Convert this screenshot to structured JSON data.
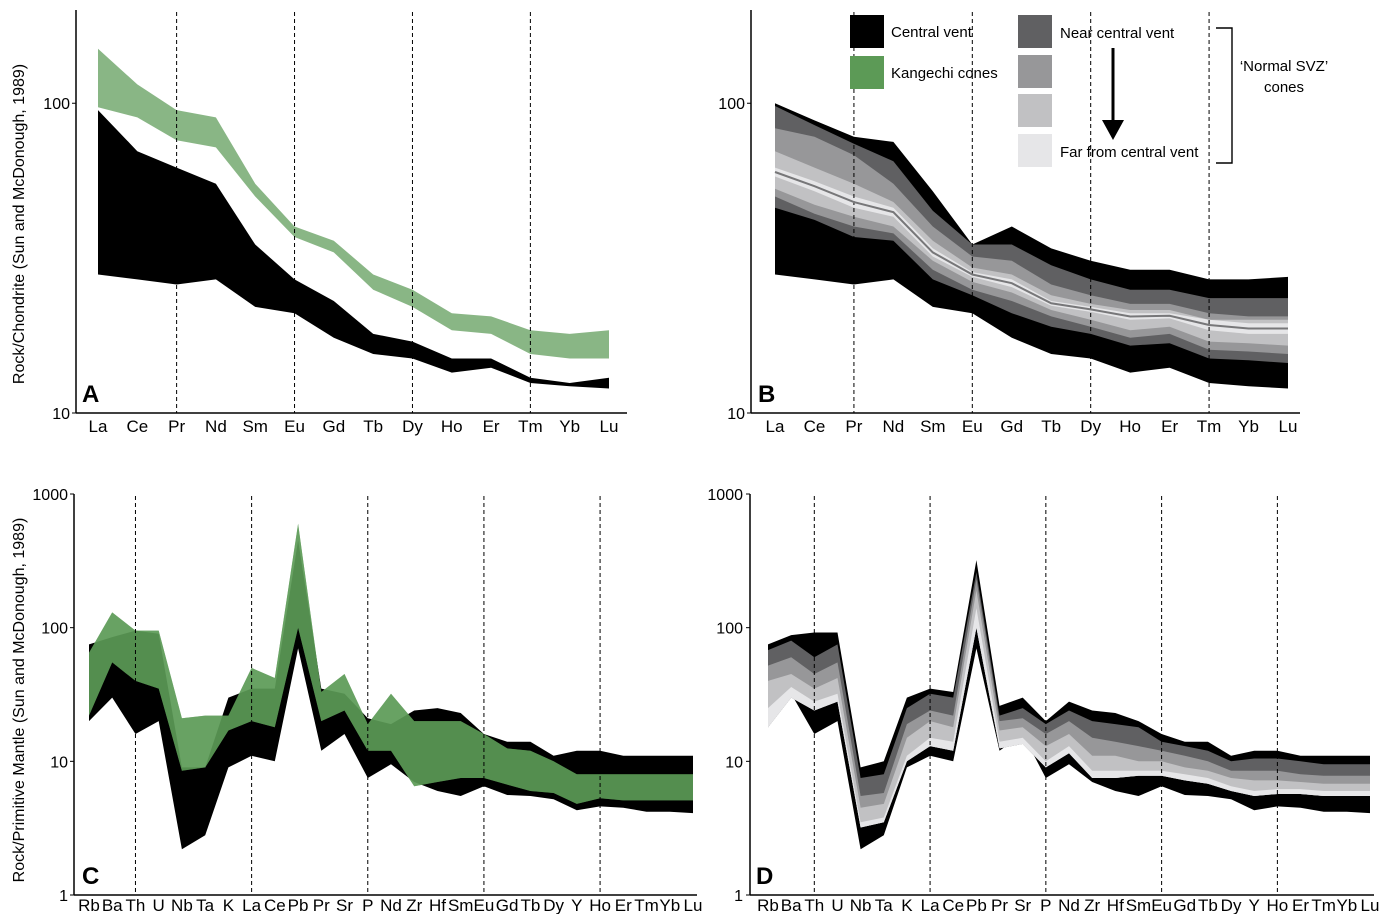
{
  "figure": {
    "ylabel_top": "Rock/Chondrite (Sun and McDonough, 1989)",
    "ylabel_bottom": "Rock/Primitive Mantle (Sun and McDonough, 1989)"
  },
  "legend": {
    "central_vent": "Central vent",
    "kangechi": "Kangechi cones",
    "near": "Near central vent",
    "far": "Far from central vent",
    "normal_svz_line1": "‘Normal SVZ’",
    "normal_svz_line2": "cones",
    "colors": {
      "central": "#000000",
      "kangechi": "#5c9a56",
      "grad": [
        "#606062",
        "#979799",
        "#c1c1c3",
        "#e6e6e8"
      ]
    }
  },
  "chart_data": [
    {
      "panel": "A",
      "type": "area",
      "yscale": "log",
      "ylim": [
        10,
        200
      ],
      "yticks": [
        "100",
        "10"
      ],
      "xlabels": [
        "La",
        "Ce",
        "Pr",
        "Nd",
        "Sm",
        "Eu",
        "Gd",
        "Tb",
        "Dy",
        "Ho",
        "Er",
        "Tm",
        "Yb",
        "Lu"
      ],
      "series": [
        {
          "name": "Central vent",
          "color": "#000000",
          "upper": [
            95,
            70,
            62,
            55,
            35,
            27,
            23,
            18,
            17,
            15,
            15,
            13,
            12.5,
            13
          ],
          "lower": [
            28,
            27,
            26,
            27,
            22,
            21,
            17.5,
            15.5,
            15,
            13.5,
            14,
            12.5,
            12.2,
            12
          ]
        },
        {
          "name": "Kangechi cones",
          "color": "#5c9a56",
          "opacity": 0.72,
          "upper": [
            150,
            115,
            95,
            90,
            55,
            40,
            36,
            28,
            25,
            21,
            20.5,
            18.5,
            18,
            18.5
          ],
          "lower": [
            97,
            90,
            76,
            72,
            50,
            37,
            33,
            25,
            22,
            18.5,
            18,
            15.5,
            15,
            15
          ]
        }
      ]
    },
    {
      "panel": "B",
      "type": "area",
      "yscale": "log",
      "ylim": [
        10,
        200
      ],
      "yticks": [
        "100",
        "10"
      ],
      "xlabels": [
        "La",
        "Ce",
        "Pr",
        "Nd",
        "Sm",
        "Eu",
        "Gd",
        "Tb",
        "Dy",
        "Ho",
        "Er",
        "Tm",
        "Yb",
        "Lu"
      ],
      "series": [
        {
          "name": "Central vent",
          "color": "#000000",
          "upper": [
            100,
            88,
            78,
            75,
            52,
            35,
            40,
            34,
            31,
            29,
            29,
            27,
            27,
            27.5
          ],
          "lower": [
            28,
            27,
            26,
            27,
            22,
            21,
            17.5,
            15.5,
            15,
            13.5,
            14,
            12.5,
            12.2,
            12
          ]
        },
        {
          "name": "Near central vent",
          "color": "#606062",
          "upper": [
            98,
            85,
            74,
            65,
            45,
            35,
            35,
            30,
            27,
            25,
            25,
            23.5,
            23.5,
            23.5
          ],
          "lower": [
            46,
            42,
            37,
            36,
            27,
            24,
            21,
            19,
            18,
            16.5,
            16.8,
            15,
            14.8,
            14.5
          ]
        },
        {
          "name": "",
          "color": "#979799",
          "upper": [
            83,
            78,
            68,
            55,
            40,
            32,
            31,
            26,
            24,
            22.5,
            22.5,
            21,
            20.5,
            20.5
          ],
          "lower": [
            50,
            44,
            40,
            38,
            29,
            25,
            23,
            20.5,
            19,
            17.5,
            18,
            16,
            15.8,
            15.5
          ]
        },
        {
          "name": "",
          "color": "#c1c1c3",
          "upper": [
            70,
            62,
            55,
            48,
            36,
            29.5,
            28,
            24,
            22.5,
            21.5,
            21.5,
            20,
            20,
            20
          ],
          "lower": [
            53,
            47,
            43,
            40,
            31,
            26.5,
            24.5,
            21.5,
            20,
            18.5,
            19,
            17,
            16.8,
            16.5
          ]
        },
        {
          "name": "Far from central vent",
          "color": "#e6e6e8",
          "upper": [
            62,
            56,
            50,
            46,
            34,
            28.5,
            27,
            23,
            22,
            21,
            21,
            20,
            19.5,
            19.5
          ],
          "lower": [
            58,
            52,
            46,
            43,
            32,
            27.5,
            25.5,
            22.2,
            21.2,
            20,
            20.2,
            18.5,
            18,
            18
          ]
        }
      ]
    },
    {
      "panel": "C",
      "type": "area",
      "yscale": "log",
      "ylim": [
        1,
        1000
      ],
      "yticks": [
        "1000",
        "100",
        "10",
        "1"
      ],
      "xlabels": [
        "Rb",
        "Ba",
        "Th",
        "U",
        "Nb",
        "Ta",
        "K",
        "La",
        "Ce",
        "Pb",
        "Pr",
        "Sr",
        "P",
        "Nd",
        "Zr",
        "Hf",
        "Sm",
        "Eu",
        "Gd",
        "Tb",
        "Dy",
        "Y",
        "Ho",
        "Er",
        "Tm",
        "Yb",
        "Lu"
      ],
      "series": [
        {
          "name": "Central vent",
          "color": "#000000",
          "upper": [
            75,
            85,
            95,
            90,
            9,
            9,
            30,
            35,
            35,
            450,
            35,
            32,
            21,
            19,
            24,
            25,
            23,
            16,
            14,
            14,
            11,
            12,
            12,
            11,
            11,
            11,
            11
          ],
          "lower": [
            20,
            30,
            16,
            20,
            2.2,
            2.8,
            9,
            11,
            10,
            70,
            12,
            16,
            7.5,
            9.5,
            7,
            6,
            5.5,
            6.5,
            5.6,
            5.5,
            5.2,
            4.3,
            4.6,
            4.5,
            4.2,
            4.2,
            4.1
          ]
        },
        {
          "name": "Kangechi cones",
          "color": "#5c9a56",
          "opacity": 0.72,
          "upper": [
            65,
            130,
            95,
            95,
            21,
            22,
            22,
            50,
            42,
            600,
            33,
            45,
            19,
            32,
            20,
            20,
            20,
            16,
            12.5,
            12,
            10,
            8,
            8,
            8,
            8,
            8,
            8
          ]
        },
        {
          "name": "",
          "color": "#5c9a56",
          "opacity": 0.72,
          "lower": [
            22,
            55,
            40,
            35,
            8.5,
            9,
            17,
            20,
            18,
            100,
            20,
            24,
            12,
            12,
            6.5,
            7,
            7.5,
            7.5,
            6.7,
            6,
            5.8,
            4.8,
            5.3,
            5.1,
            5.1,
            5.1,
            5.1
          ]
        }
      ]
    },
    {
      "panel": "D",
      "type": "area",
      "yscale": "log",
      "ylim": [
        1,
        1000
      ],
      "yticks": [
        "1000",
        "100",
        "10",
        "1"
      ],
      "xlabels": [
        "Rb",
        "Ba",
        "Th",
        "U",
        "Nb",
        "Ta",
        "K",
        "La",
        "Ce",
        "Pb",
        "Pr",
        "Sr",
        "P",
        "Nd",
        "Zr",
        "Hf",
        "Sm",
        "Eu",
        "Gd",
        "Tb",
        "Dy",
        "Y",
        "Ho",
        "Er",
        "Tm",
        "Yb",
        "Lu"
      ],
      "series": [
        {
          "name": "Central vent",
          "color": "#000000",
          "upper": [
            75,
            88,
            92,
            92,
            9,
            10,
            30,
            35,
            33,
            320,
            26,
            30,
            20,
            28,
            24,
            23,
            20,
            16,
            14,
            14,
            11,
            12,
            12,
            11,
            11,
            11,
            11
          ],
          "lower": [
            18,
            32,
            16,
            20,
            2.2,
            2.8,
            9,
            11,
            10,
            70,
            12,
            16,
            7.5,
            9.5,
            7,
            6,
            5.5,
            6.5,
            5.6,
            5.5,
            5.2,
            4.3,
            4.6,
            4.5,
            4.2,
            4.2,
            4.1
          ]
        },
        {
          "name": "Near central vent",
          "color": "#606062",
          "upper": [
            68,
            80,
            60,
            75,
            7.5,
            8,
            25,
            32,
            30,
            260,
            22,
            25,
            19,
            24,
            20,
            19,
            18,
            14,
            13,
            12,
            10,
            10.5,
            10.5,
            10,
            9.5,
            9.5,
            9.5
          ]
        },
        {
          "name": "",
          "color": "#979799",
          "upper": [
            52,
            60,
            45,
            55,
            5.5,
            5.8,
            19,
            24,
            22,
            230,
            20,
            21,
            16,
            20,
            15,
            14,
            13,
            12,
            11,
            10,
            8.5,
            8.5,
            8.5,
            8,
            7.8,
            7.8,
            7.8
          ]
        },
        {
          "name": "",
          "color": "#c1c1c3",
          "upper": [
            40,
            45,
            35,
            42,
            4.5,
            4.8,
            15,
            20,
            18,
            190,
            17,
            18,
            13,
            16,
            11,
            11,
            10,
            10,
            9,
            8.5,
            7.5,
            7.2,
            7.2,
            7,
            6.8,
            6.8,
            6.8
          ]
        },
        {
          "name": "Far from central vent",
          "color": "#e6e6e8",
          "upper": [
            25,
            36,
            28,
            32,
            3.5,
            3.8,
            11,
            15,
            14,
            140,
            14,
            15,
            10,
            13,
            8.5,
            8.5,
            8.5,
            8.5,
            8,
            7.5,
            6.5,
            6,
            6.2,
            6.2,
            6,
            6,
            6
          ],
          "lower": [
            18,
            30,
            24,
            28,
            3.2,
            3.5,
            10,
            13,
            12,
            100,
            12.5,
            13.5,
            9,
            11.5,
            7.5,
            7.5,
            7.8,
            7.8,
            7.2,
            6.8,
            6,
            5.5,
            5.7,
            5.7,
            5.5,
            5.5,
            5.5
          ]
        }
      ]
    }
  ]
}
